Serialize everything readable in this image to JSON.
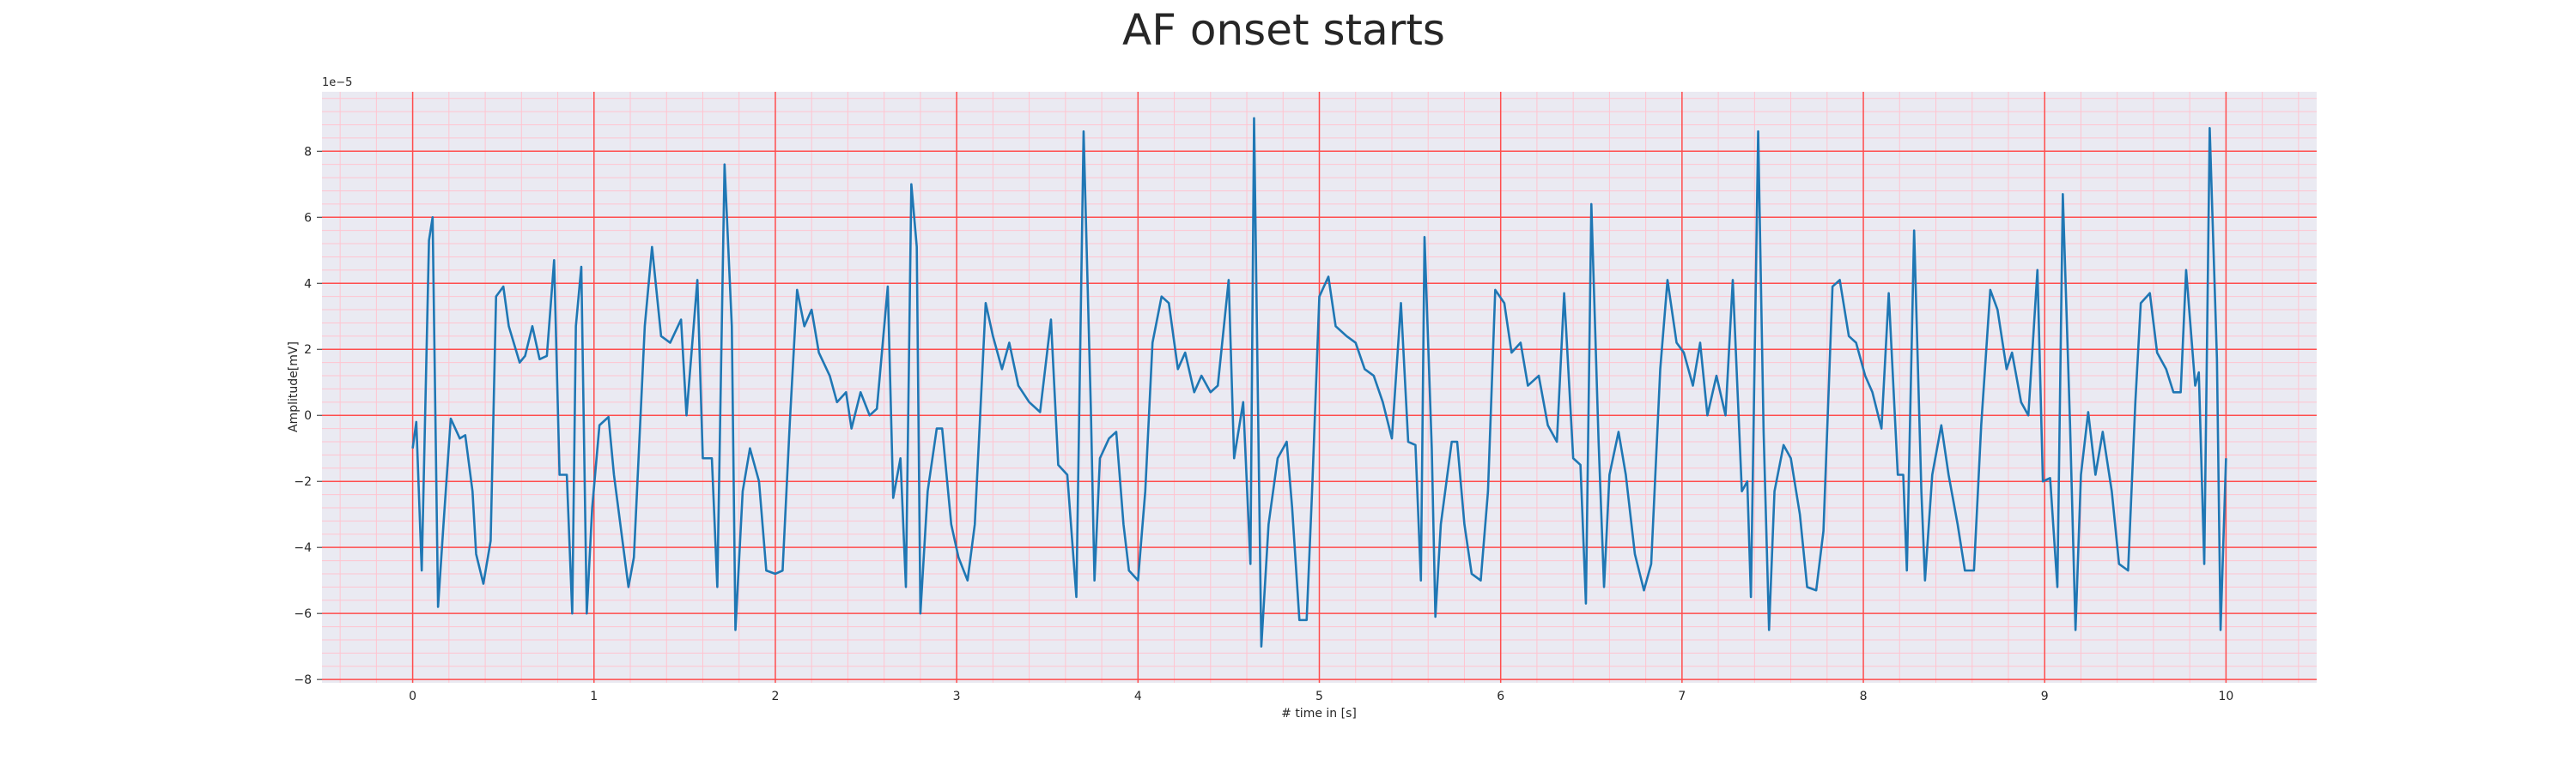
{
  "chart_data": {
    "type": "line",
    "title": "AF onset starts",
    "xlabel": "# time in [s]",
    "ylabel": "Amplitude[mV]",
    "offset_label": "1e−5",
    "color": "#1f77b4",
    "grid": true,
    "grid_color": "#ff4d4d",
    "minor_grid_color": "#ffc4d0",
    "background": "#eaeaf2",
    "xlim": [
      -0.5,
      10.5
    ],
    "ylim": [
      -8.1,
      9.8
    ],
    "xticks": [
      0,
      1,
      2,
      3,
      4,
      5,
      6,
      7,
      8,
      9,
      10
    ],
    "yticks": [
      {
        "value": -8,
        "label": "−8"
      },
      {
        "value": -6,
        "label": "−6"
      },
      {
        "value": -4,
        "label": "−4"
      },
      {
        "value": -2,
        "label": "−2"
      },
      0,
      2,
      4,
      6,
      8
    ],
    "xminor": [
      -0.4,
      -0.2,
      0,
      0.2,
      0.4,
      0.6,
      0.8,
      1,
      1.2,
      1.4,
      1.6,
      1.8,
      2,
      2.2,
      2.4,
      2.6,
      2.8,
      3,
      3.2,
      3.4,
      3.6,
      3.8,
      4,
      4.2,
      4.4,
      4.6,
      4.8,
      5,
      5.2,
      5.4,
      5.6,
      5.8,
      6,
      6.2,
      6.4,
      6.6,
      6.8,
      7,
      7.2,
      7.4,
      7.6,
      7.8,
      8,
      8.2,
      8.4,
      8.6,
      8.8,
      9,
      9.2,
      9.4,
      9.6,
      9.8,
      10,
      10.2,
      10.4
    ],
    "yminor": [
      -8,
      -7.6,
      -7.2,
      -6.8,
      -6.4,
      -6,
      -5.6,
      -5.2,
      -4.8,
      -4.4,
      -4,
      -3.6,
      -3.2,
      -2.8,
      -2.4,
      -2,
      -1.6,
      -1.2,
      -0.8,
      -0.4,
      0,
      0.4,
      0.8,
      1.2,
      1.6,
      2,
      2.4,
      2.8,
      3.2,
      3.6,
      4,
      4.4,
      4.8,
      5.2,
      5.6,
      6,
      6.4,
      6.8,
      7.2,
      7.6,
      8,
      8.4,
      8.8,
      9.2,
      9.6
    ],
    "x": [
      0,
      0.02,
      0.05,
      0.09,
      0.11,
      0.14,
      0.17,
      0.21,
      0.26,
      0.29,
      0.33,
      0.35,
      0.39,
      0.43,
      0.46,
      0.5,
      0.53,
      0.59,
      0.62,
      0.66,
      0.7,
      0.74,
      0.78,
      0.81,
      0.85,
      0.88,
      0.9,
      0.93,
      0.96,
      0.99,
      1.03,
      1.08,
      1.11,
      1.15,
      1.19,
      1.22,
      1.28,
      1.32,
      1.37,
      1.42,
      1.48,
      1.51,
      1.57,
      1.6,
      1.65,
      1.68,
      1.72,
      1.76,
      1.78,
      1.82,
      1.86,
      1.91,
      1.95,
      2.0,
      2.04,
      2.08,
      2.12,
      2.16,
      2.2,
      2.24,
      2.3,
      2.34,
      2.39,
      2.42,
      2.47,
      2.52,
      2.56,
      2.62,
      2.65,
      2.69,
      2.72,
      2.75,
      2.78,
      2.8,
      2.84,
      2.89,
      2.92,
      2.97,
      3.01,
      3.06,
      3.1,
      3.16,
      3.2,
      3.25,
      3.29,
      3.34,
      3.4,
      3.46,
      3.52,
      3.56,
      3.61,
      3.66,
      3.7,
      3.74,
      3.76,
      3.79,
      3.84,
      3.88,
      3.92,
      3.95,
      4.0,
      4.04,
      4.08,
      4.13,
      4.17,
      4.22,
      4.26,
      4.31,
      4.35,
      4.4,
      4.44,
      4.5,
      4.53,
      4.58,
      4.62,
      4.64,
      4.68,
      4.72,
      4.77,
      4.82,
      4.85,
      4.89,
      4.93,
      4.96,
      5.0,
      5.05,
      5.09,
      5.15,
      5.2,
      5.25,
      5.3,
      5.35,
      5.4,
      5.45,
      5.49,
      5.53,
      5.56,
      5.58,
      5.62,
      5.64,
      5.67,
      5.73,
      5.76,
      5.8,
      5.84,
      5.89,
      5.93,
      5.97,
      6.02,
      6.06,
      6.11,
      6.15,
      6.21,
      6.26,
      6.31,
      6.35,
      6.4,
      6.44,
      6.47,
      6.5,
      6.54,
      6.57,
      6.6,
      6.65,
      6.69,
      6.74,
      6.79,
      6.83,
      6.88,
      6.92,
      6.97,
      7.01,
      7.06,
      7.1,
      7.14,
      7.19,
      7.24,
      7.28,
      7.33,
      7.36,
      7.38,
      7.42,
      7.45,
      7.48,
      7.51,
      7.56,
      7.6,
      7.65,
      7.69,
      7.74,
      7.78,
      7.83,
      7.87,
      7.92,
      7.96,
      8.01,
      8.05,
      8.1,
      8.14,
      8.19,
      8.22,
      8.24,
      8.28,
      8.32,
      8.34,
      8.38,
      8.43,
      8.47,
      8.52,
      8.56,
      8.61,
      8.65,
      8.7,
      8.74,
      8.79,
      8.82,
      8.87,
      8.91,
      8.96,
      8.99,
      9.03,
      9.07,
      9.1,
      9.14,
      9.17,
      9.2,
      9.24,
      9.28,
      9.32,
      9.37,
      9.41,
      9.46,
      9.5,
      9.53,
      9.58,
      9.62,
      9.67,
      9.71,
      9.75,
      9.78,
      9.83,
      9.85,
      9.88,
      9.91,
      9.95,
      9.97,
      10.0
    ],
    "values": [
      -1.0,
      -0.2,
      -4.7,
      5.3,
      6.0,
      -5.8,
      -3.3,
      -0.1,
      -0.7,
      -0.6,
      -2.3,
      -4.2,
      -5.1,
      -3.8,
      3.6,
      3.9,
      2.7,
      1.6,
      1.8,
      2.7,
      1.7,
      1.8,
      4.7,
      -1.8,
      -1.8,
      -6.0,
      2.7,
      4.5,
      -6.0,
      -2.8,
      -0.3,
      -0.05,
      -1.8,
      -3.5,
      -5.2,
      -4.3,
      2.7,
      5.1,
      2.4,
      2.2,
      2.9,
      0,
      4.1,
      -1.3,
      -1.3,
      -5.2,
      7.6,
      2.7,
      -6.5,
      -2.3,
      -1.0,
      -2.0,
      -4.7,
      -4.8,
      -4.7,
      -0.2,
      3.8,
      2.7,
      3.2,
      1.9,
      1.2,
      0.4,
      0.7,
      -0.4,
      0.7,
      0,
      0.2,
      3.9,
      -2.5,
      -1.3,
      -5.2,
      7.0,
      5.1,
      -6.0,
      -2.3,
      -0.4,
      -0.4,
      -3.3,
      -4.3,
      -5.0,
      -3.3,
      3.4,
      2.4,
      1.4,
      2.2,
      0.9,
      0.4,
      0.1,
      2.9,
      -1.5,
      -1.8,
      -5.5,
      8.6,
      0.2,
      -5.0,
      -1.3,
      -0.7,
      -0.5,
      -3.3,
      -4.7,
      -5.0,
      -2.3,
      2.2,
      3.6,
      3.4,
      1.4,
      1.9,
      0.7,
      1.2,
      0.7,
      0.9,
      4.1,
      -1.3,
      0.4,
      -4.5,
      9.0,
      -7.0,
      -3.3,
      -1.3,
      -0.8,
      -2.8,
      -6.2,
      -6.2,
      -2.3,
      3.6,
      4.2,
      2.7,
      2.4,
      2.2,
      1.4,
      1.2,
      0.4,
      -0.7,
      3.4,
      -0.8,
      -0.9,
      -5.0,
      5.4,
      -1.0,
      -6.1,
      -3.3,
      -0.8,
      -0.8,
      -3.3,
      -4.8,
      -5.0,
      -2.3,
      3.8,
      3.4,
      1.9,
      2.2,
      0.9,
      1.2,
      -0.3,
      -0.8,
      3.7,
      -1.3,
      -1.5,
      -5.7,
      6.4,
      -0.8,
      -5.2,
      -1.8,
      -0.5,
      -1.8,
      -4.2,
      -5.3,
      -4.5,
      1.4,
      4.1,
      2.2,
      1.9,
      0.9,
      2.2,
      0,
      1.2,
      0,
      4.1,
      -2.3,
      -2.0,
      -5.5,
      8.6,
      -0.5,
      -6.5,
      -2.3,
      -0.9,
      -1.3,
      -3.0,
      -5.2,
      -5.3,
      -3.5,
      3.9,
      4.1,
      2.4,
      2.2,
      1.2,
      0.7,
      -0.4,
      3.7,
      -1.8,
      -1.8,
      -4.7,
      5.6,
      -2.3,
      -5.0,
      -1.8,
      -0.3,
      -1.8,
      -3.3,
      -4.7,
      -4.7,
      -0.3,
      3.8,
      3.2,
      1.4,
      1.9,
      0.4,
      0,
      4.4,
      -2.0,
      -1.9,
      -5.2,
      6.7,
      -0.3,
      -6.5,
      -1.8,
      0.1,
      -1.8,
      -0.5,
      -2.3,
      -4.5,
      -4.7,
      0.4,
      3.4,
      3.7,
      1.9,
      1.4,
      0.7,
      0.7,
      4.4,
      0.9,
      1.3,
      -4.5,
      8.7,
      1.7,
      -6.5,
      -1.3
    ]
  }
}
